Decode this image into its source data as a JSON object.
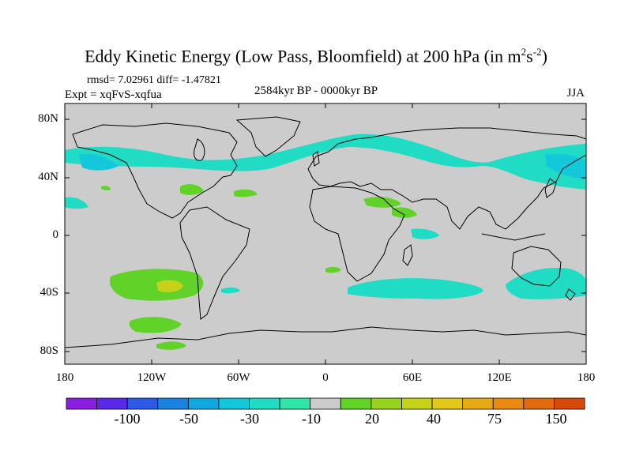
{
  "title": {
    "main": "Eddy Kinetic Energy (Low Pass, Bloomfield) at 200 hPa (in m",
    "sup1": "2",
    "mid": "s",
    "sup2": "-2",
    "end": ")"
  },
  "stats": "rmsd= 7.02961  diff= -1.47821",
  "experiment": "Expt = xqFvS-xqfua",
  "period": "2584kyr BP - 0000kyr BP",
  "season": "JJA",
  "y_axis_labels": [
    "80N",
    "40N",
    "0",
    "40S",
    "80S"
  ],
  "x_axis_labels": [
    "180",
    "120W",
    "60W",
    "0",
    "60E",
    "120E",
    "180"
  ],
  "colorbar": {
    "labels": [
      "-100",
      "-50",
      "-30",
      "-10",
      "20",
      "40",
      "75",
      "150"
    ],
    "colors": [
      "#8a1ee0",
      "#5a28e8",
      "#2c5ae6",
      "#1c82e0",
      "#10a8e0",
      "#14c8dc",
      "#20dcc4",
      "#30e6a8",
      "#cccccc",
      "#60d228",
      "#96d21e",
      "#c6d21a",
      "#e2c81a",
      "#e8aa14",
      "#e88a10",
      "#e06a10",
      "#d84a0c"
    ]
  },
  "map": {
    "background": "#cccccc",
    "cyan": "#20dcc4",
    "teal": "#14c8dc",
    "green": "#60d228",
    "yellowgreen": "#c6d21a"
  }
}
